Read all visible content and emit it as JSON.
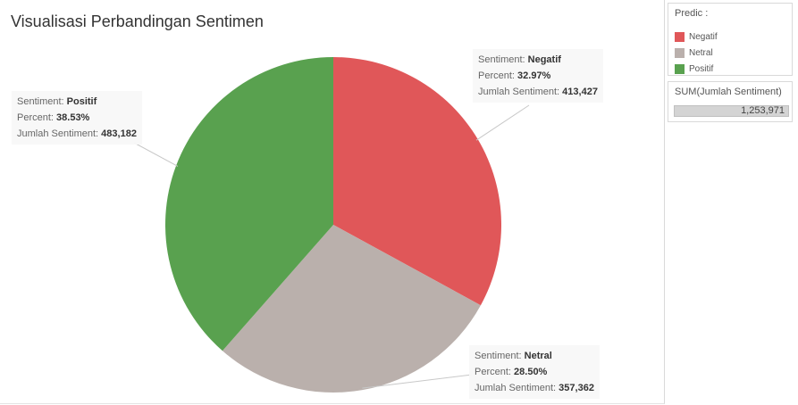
{
  "chart_data": {
    "type": "pie",
    "title": "Visualisasi Perbandingan Sentimen",
    "slices": [
      {
        "label": "Negatif",
        "percent": 32.97,
        "value": 413427,
        "percent_text": "32.97%",
        "value_text": "413,427",
        "color": "#e05759"
      },
      {
        "label": "Netral",
        "percent": 28.5,
        "value": 357362,
        "percent_text": "28.50%",
        "value_text": "357,362",
        "color": "#bab0ac"
      },
      {
        "label": "Positif",
        "percent": 38.53,
        "value": 483182,
        "percent_text": "38.53%",
        "value_text": "483,182",
        "color": "#59a14f"
      }
    ],
    "tooltip_labels": {
      "sentiment": "Sentiment:",
      "percent": "Percent:",
      "count": "Jumlah Sentiment:"
    }
  },
  "legend": {
    "title": "Predic :",
    "items": [
      {
        "label": "Negatif",
        "color": "#e05759"
      },
      {
        "label": "Netral",
        "color": "#bab0ac"
      },
      {
        "label": "Positif",
        "color": "#59a14f"
      }
    ]
  },
  "sum_card": {
    "title": "SUM(Jumlah Sentiment)",
    "value": "1,253,971"
  }
}
